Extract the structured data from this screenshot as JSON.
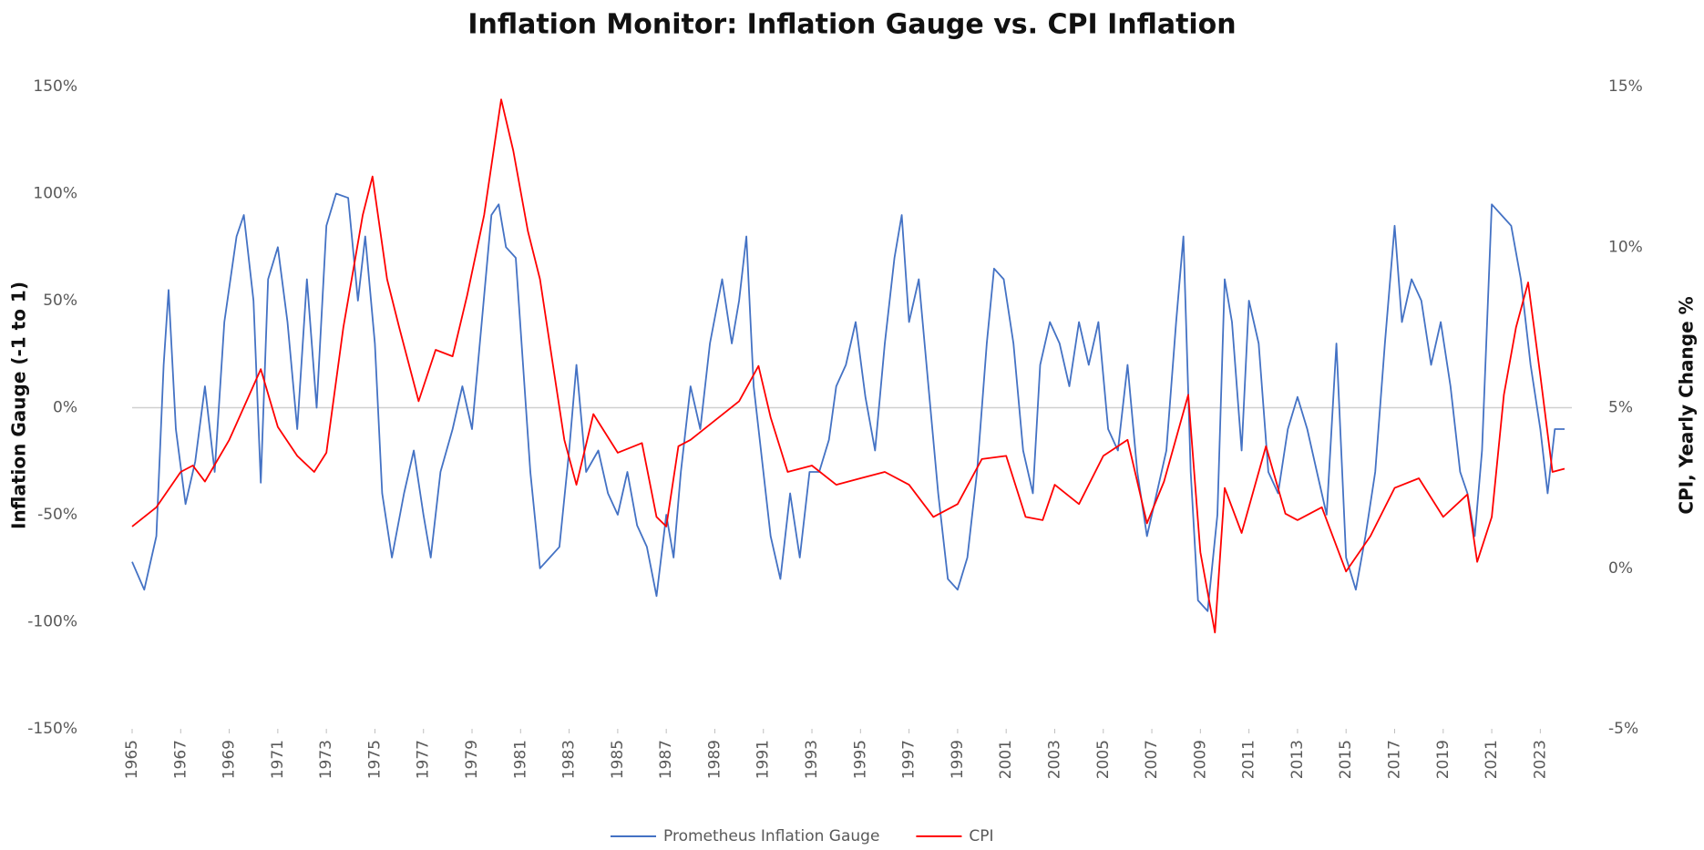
{
  "chart_data": {
    "type": "line",
    "title": "Inflation Monitor: Inflation Gauge vs. CPI Inflation",
    "ylabel": "Inflation Gauge (-1 to 1)",
    "y2label": "CPI, Yearly Change %",
    "xlim": [
      1965,
      2024.3
    ],
    "xticks": [
      1965,
      1967,
      1969,
      1971,
      1973,
      1975,
      1977,
      1979,
      1981,
      1983,
      1985,
      1987,
      1989,
      1991,
      1993,
      1995,
      1997,
      1999,
      2001,
      2003,
      2005,
      2007,
      2009,
      2011,
      2013,
      2015,
      2017,
      2019,
      2021,
      2023
    ],
    "ylim": [
      -150,
      150
    ],
    "yticks": [
      {
        "value": -150,
        "label": "-150%"
      },
      {
        "value": -100,
        "label": "-100%"
      },
      {
        "value": -50,
        "label": "-50%"
      },
      {
        "value": 0,
        "label": "0%"
      },
      {
        "value": 50,
        "label": "50%"
      },
      {
        "value": 100,
        "label": "100%"
      },
      {
        "value": 150,
        "label": "150%"
      }
    ],
    "y2lim": [
      -5,
      15
    ],
    "y2ticks": [
      {
        "value": -5,
        "label": "-5%"
      },
      {
        "value": 0,
        "label": "0%"
      },
      {
        "value": 5,
        "label": "5%"
      },
      {
        "value": 10,
        "label": "10%"
      },
      {
        "value": 15,
        "label": "15%"
      }
    ],
    "zero_line": true,
    "legend": "bottom",
    "series": [
      {
        "name": "Prometheus Inflation Gauge",
        "color": "#4472c4",
        "x": [
          1965,
          1965.5,
          1966,
          1966.3,
          1966.5,
          1966.8,
          1967.2,
          1967.6,
          1968,
          1968.4,
          1968.8,
          1969.3,
          1969.6,
          1970,
          1970.3,
          1970.6,
          1971,
          1971.4,
          1971.8,
          1972.2,
          1972.6,
          1973,
          1973.4,
          1973.9,
          1974.3,
          1974.6,
          1975,
          1975.3,
          1975.7,
          1976.2,
          1976.6,
          1977,
          1977.3,
          1977.7,
          1978.2,
          1978.6,
          1979,
          1979.4,
          1979.8,
          1980.1,
          1980.4,
          1980.8,
          1981.1,
          1981.4,
          1981.8,
          1982.2,
          1982.6,
          1983,
          1983.3,
          1983.7,
          1984.2,
          1984.6,
          1985,
          1985.4,
          1985.8,
          1986.2,
          1986.6,
          1987,
          1987.3,
          1987.6,
          1988,
          1988.4,
          1988.8,
          1989.3,
          1989.7,
          1990,
          1990.3,
          1990.6,
          1990.9,
          1991.3,
          1991.7,
          1992.1,
          1992.5,
          1992.9,
          1993.3,
          1993.7,
          1994,
          1994.4,
          1994.8,
          1995.2,
          1995.6,
          1996,
          1996.4,
          1996.7,
          1997,
          1997.4,
          1997.8,
          1998.2,
          1998.6,
          1999,
          1999.4,
          1999.8,
          2000.2,
          2000.5,
          2000.9,
          2001.3,
          2001.7,
          2002.1,
          2002.4,
          2002.8,
          2003.2,
          2003.6,
          2004,
          2004.4,
          2004.8,
          2005.2,
          2005.6,
          2006,
          2006.4,
          2006.8,
          2007.2,
          2007.6,
          2008,
          2008.3,
          2008.6,
          2008.9,
          2009.3,
          2009.7,
          2010,
          2010.3,
          2010.7,
          2011,
          2011.4,
          2011.8,
          2012.2,
          2012.6,
          2013,
          2013.4,
          2013.8,
          2014.2,
          2014.6,
          2015,
          2015.4,
          2015.8,
          2016.2,
          2016.6,
          2017,
          2017.3,
          2017.7,
          2018.1,
          2018.5,
          2018.9,
          2019.3,
          2019.7,
          2020,
          2020.3,
          2020.6,
          2021,
          2021.4,
          2021.8,
          2022.2,
          2022.6,
          2023,
          2023.3,
          2023.6,
          2024
        ],
        "values": [
          -72,
          -85,
          -60,
          20,
          55,
          -10,
          -45,
          -25,
          10,
          -30,
          40,
          80,
          90,
          50,
          -35,
          60,
          75,
          40,
          -10,
          60,
          0,
          85,
          100,
          98,
          50,
          80,
          30,
          -40,
          -70,
          -40,
          -20,
          -50,
          -70,
          -30,
          -10,
          10,
          -10,
          40,
          90,
          95,
          75,
          70,
          20,
          -30,
          -75,
          -70,
          -65,
          -20,
          20,
          -30,
          -20,
          -40,
          -50,
          -30,
          -55,
          -65,
          -88,
          -50,
          -70,
          -30,
          10,
          -10,
          30,
          60,
          30,
          50,
          80,
          10,
          -20,
          -60,
          -80,
          -40,
          -70,
          -30,
          -30,
          -15,
          10,
          20,
          40,
          5,
          -20,
          30,
          70,
          90,
          40,
          60,
          10,
          -40,
          -80,
          -85,
          -70,
          -30,
          30,
          65,
          60,
          30,
          -20,
          -40,
          20,
          40,
          30,
          10,
          40,
          20,
          40,
          -10,
          -20,
          20,
          -30,
          -60,
          -40,
          -20,
          40,
          80,
          -30,
          -90,
          -95,
          -50,
          60,
          40,
          -20,
          50,
          30,
          -30,
          -40,
          -10,
          5,
          -10,
          -30,
          -50,
          30,
          -70,
          -85,
          -60,
          -30,
          30,
          85,
          40,
          60,
          50,
          20,
          40,
          10,
          -30,
          -40,
          -60,
          -20,
          95,
          90,
          85,
          60,
          20,
          -10,
          -40,
          -10,
          -10
        ]
      },
      {
        "name": "CPI",
        "color": "#ff0000",
        "axis": "y2",
        "x": [
          1965,
          1966,
          1967,
          1967.5,
          1968,
          1969,
          1970.3,
          1971,
          1971.8,
          1972.5,
          1973,
          1973.7,
          1974.5,
          1974.9,
          1975.5,
          1976,
          1976.8,
          1977.5,
          1978.2,
          1978.8,
          1979.5,
          1980.2,
          1980.7,
          1981.3,
          1981.8,
          1982.3,
          1982.8,
          1983.3,
          1984,
          1985,
          1986,
          1986.6,
          1987,
          1987.5,
          1988,
          1989,
          1990,
          1990.8,
          1991.3,
          1992,
          1993,
          1994,
          1995,
          1996,
          1997,
          1998,
          1999,
          2000,
          2001,
          2001.8,
          2002.5,
          2003,
          2004,
          2005,
          2006,
          2006.8,
          2007.5,
          2008.5,
          2009,
          2009.6,
          2010,
          2010.7,
          2011.7,
          2012.5,
          2013,
          2014,
          2015,
          2016,
          2017,
          2018,
          2019,
          2020,
          2020.4,
          2021,
          2021.5,
          2022,
          2022.5,
          2023,
          2023.5,
          2024
        ],
        "values": [
          1.3,
          1.9,
          3.0,
          3.2,
          2.7,
          4.0,
          6.2,
          4.4,
          3.5,
          3.0,
          3.6,
          7.5,
          11,
          12.2,
          9.0,
          7.5,
          5.2,
          6.8,
          6.6,
          8.5,
          11,
          14.6,
          13,
          10.5,
          9.0,
          6.5,
          4.0,
          2.6,
          4.8,
          3.6,
          3.9,
          1.6,
          1.3,
          3.8,
          4.0,
          4.6,
          5.2,
          6.3,
          4.7,
          3.0,
          3.2,
          2.6,
          2.8,
          3.0,
          2.6,
          1.6,
          2.0,
          3.4,
          3.5,
          1.6,
          1.5,
          2.6,
          2.0,
          3.5,
          4.0,
          1.4,
          2.7,
          5.4,
          0.5,
          -2.0,
          2.5,
          1.1,
          3.8,
          1.7,
          1.5,
          1.9,
          -0.1,
          1.0,
          2.5,
          2.8,
          1.6,
          2.3,
          0.2,
          1.6,
          5.4,
          7.5,
          8.9,
          6.0,
          3.0,
          3.1
        ]
      }
    ]
  }
}
